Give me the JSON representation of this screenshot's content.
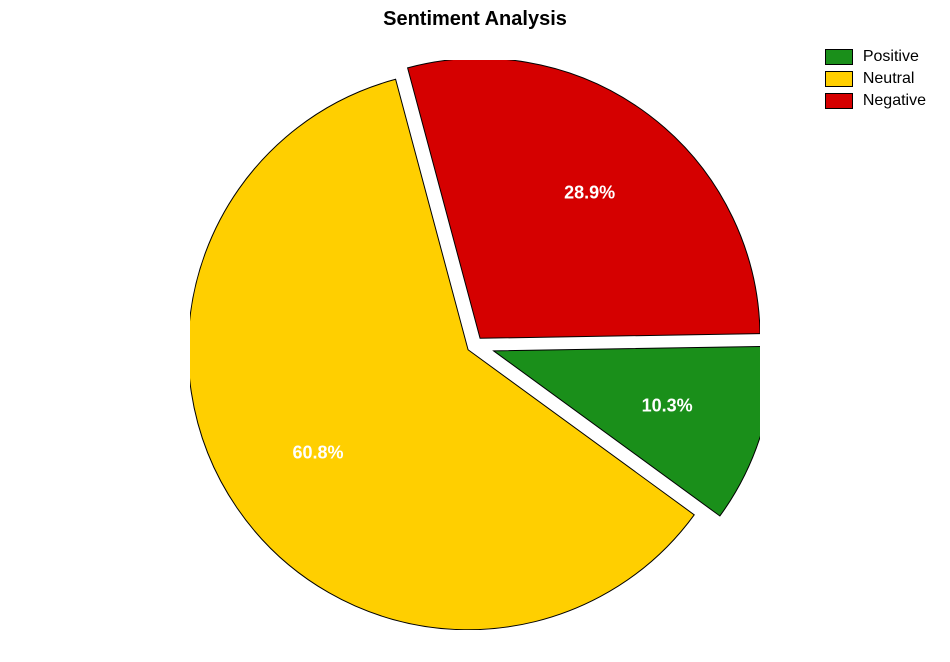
{
  "chart": {
    "type": "pie",
    "title": "Sentiment Analysis",
    "title_fontsize": 20,
    "title_fontweight": "bold",
    "title_color": "#000000",
    "background_color": "#ffffff",
    "slices": [
      {
        "name": "Negative",
        "value": 28.9,
        "label": "28.9%",
        "color": "#d50000",
        "explode": 0.03
      },
      {
        "name": "Positive",
        "value": 10.3,
        "label": "10.3%",
        "color": "#1a8f1a",
        "explode": 0.07
      },
      {
        "name": "Neutral",
        "value": 60.8,
        "label": "60.8%",
        "color": "#ffcf00",
        "explode": 0.03
      }
    ],
    "start_angle_deg": 105,
    "direction": "clockwise",
    "radius": 280,
    "stroke_color": "#000000",
    "stroke_width": 1,
    "gap_color": "#ffffff",
    "label_fontsize": 18,
    "label_fontweight": "bold",
    "label_color": "#ffffff",
    "label_radius_factor": 0.65,
    "legend": {
      "position": "top-right",
      "fontsize": 16,
      "text_color": "#000000",
      "swatch_border": "#000000",
      "items": [
        {
          "label": "Positive",
          "color": "#1a8f1a"
        },
        {
          "label": "Neutral",
          "color": "#ffcf00"
        },
        {
          "label": "Negative",
          "color": "#d50000"
        }
      ]
    }
  }
}
